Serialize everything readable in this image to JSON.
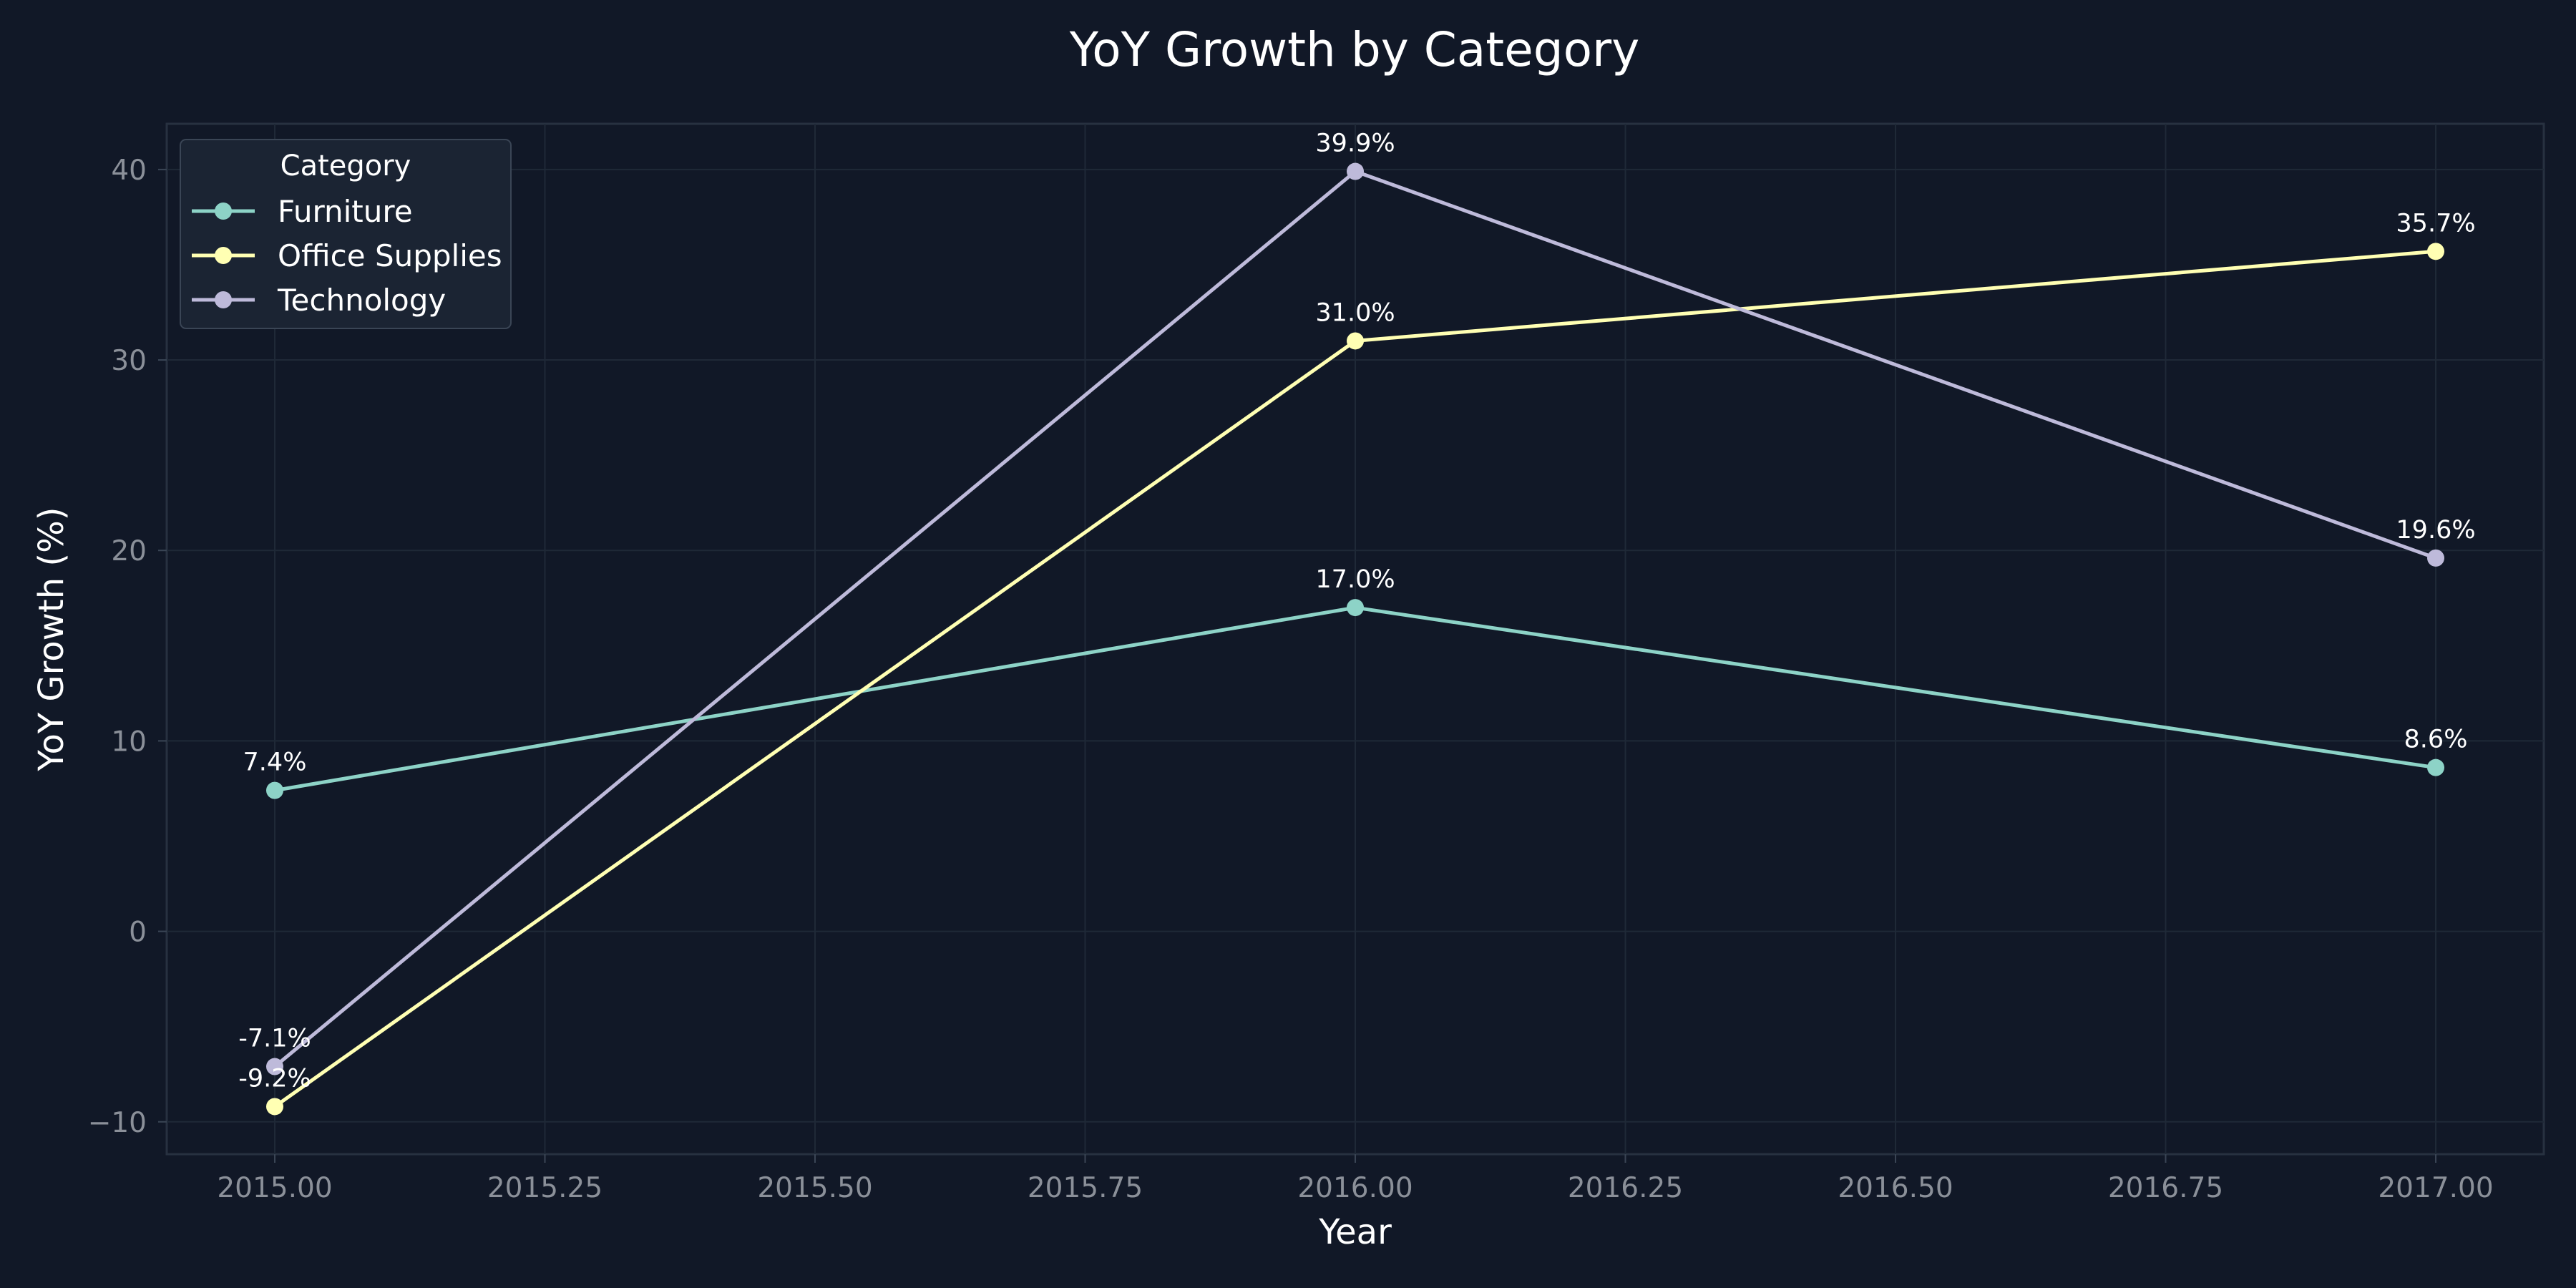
{
  "chart_data": {
    "type": "line",
    "title": "YoY Growth by Category",
    "xlabel": "Year",
    "ylabel": "YoY Growth (%)",
    "x": [
      2015,
      2016,
      2017
    ],
    "xlim": [
      2014.9,
      2017.1
    ],
    "ylim": [
      -11.7,
      42.4
    ],
    "xticks": [
      2015.0,
      2015.25,
      2015.5,
      2015.75,
      2016.0,
      2016.25,
      2016.5,
      2016.75,
      2017.0
    ],
    "xtick_labels": [
      "2015.00",
      "2015.25",
      "2015.50",
      "2015.75",
      "2016.00",
      "2016.25",
      "2016.50",
      "2016.75",
      "2017.00"
    ],
    "yticks": [
      -10,
      0,
      10,
      20,
      30,
      40
    ],
    "ytick_labels": [
      "−10",
      "0",
      "10",
      "20",
      "30",
      "40"
    ],
    "grid": true,
    "legend": {
      "title": "Category",
      "placement": "top-left"
    },
    "series": [
      {
        "name": "Furniture",
        "color": "#8dd3c7",
        "values": [
          7.4,
          17.0,
          8.6
        ],
        "labels": [
          "7.4%",
          "17.0%",
          "8.6%"
        ]
      },
      {
        "name": "Office Supplies",
        "color": "#ffffb3",
        "values": [
          -9.2,
          31.0,
          35.7
        ],
        "labels": [
          "-9.2%",
          "31.0%",
          "35.7%"
        ]
      },
      {
        "name": "Technology",
        "color": "#bebada",
        "values": [
          -7.1,
          39.9,
          19.6
        ],
        "labels": [
          "-7.1%",
          "39.9%",
          "19.6%"
        ]
      }
    ]
  }
}
